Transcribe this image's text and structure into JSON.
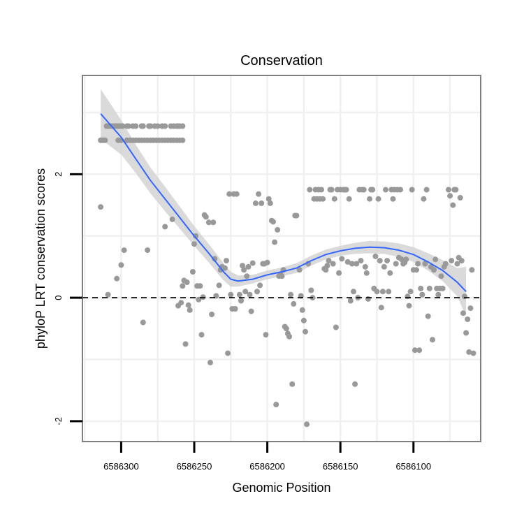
{
  "chart_data": {
    "type": "scatter",
    "title": "Conservation",
    "xlabel": "Genomic Position",
    "ylabel": "phyloP LRT conservation scores",
    "xlim": [
      6586326.5,
      6586054
    ],
    "ylim": [
      -2.33,
      3.6
    ],
    "x_reversed": true,
    "grid": true,
    "xticks": [
      {
        "value": 6586300,
        "label": "6586300"
      },
      {
        "value": 6586250,
        "label": "6586250"
      },
      {
        "value": 6586200,
        "label": "6586200"
      },
      {
        "value": 6586150,
        "label": "6586150"
      },
      {
        "value": 6586100,
        "label": "6586100"
      }
    ],
    "yticks": [
      {
        "value": -2,
        "label": "-2"
      },
      {
        "value": 0,
        "label": "0"
      },
      {
        "value": 2,
        "label": "2"
      }
    ],
    "reference_line": {
      "y": 0,
      "style": "dashed"
    },
    "colors": {
      "points": "#999999",
      "smooth": "#3366FF",
      "band": "#d3d3d3",
      "panel_border": "#7f7f7f",
      "grid": "#f0f0f0"
    },
    "points": [
      [
        6586314,
        2.55
      ],
      [
        6586313,
        2.55
      ],
      [
        6586312,
        2.55
      ],
      [
        6586311,
        2.55
      ],
      [
        6586310,
        2.78
      ],
      [
        6586309,
        2.78
      ],
      [
        6586308,
        2.78
      ],
      [
        6586307,
        2.78
      ],
      [
        6586306,
        2.78
      ],
      [
        6586305,
        2.78
      ],
      [
        6586304,
        2.78
      ],
      [
        6586303,
        2.78
      ],
      [
        6586302,
        2.78
      ],
      [
        6586301,
        2.78
      ],
      [
        6586300,
        2.78
      ],
      [
        6586299,
        2.78
      ],
      [
        6586296,
        2.78
      ],
      [
        6586295,
        2.78
      ],
      [
        6586292,
        2.78
      ],
      [
        6586290,
        2.78
      ],
      [
        6586286,
        2.78
      ],
      [
        6586285,
        2.78
      ],
      [
        6586281,
        2.78
      ],
      [
        6586280,
        2.78
      ],
      [
        6586277,
        2.78
      ],
      [
        6586275,
        2.78
      ],
      [
        6586272,
        2.78
      ],
      [
        6586270,
        2.78
      ],
      [
        6586266,
        2.78
      ],
      [
        6586264,
        2.78
      ],
      [
        6586262,
        2.78
      ],
      [
        6586261,
        2.78
      ],
      [
        6586260,
        2.78
      ],
      [
        6586258,
        2.78
      ],
      [
        6586302,
        2.55
      ],
      [
        6586300,
        2.55
      ],
      [
        6586296,
        2.55
      ],
      [
        6586294,
        2.55
      ],
      [
        6586292,
        2.55
      ],
      [
        6586290,
        2.55
      ],
      [
        6586288,
        2.55
      ],
      [
        6586286,
        2.55
      ],
      [
        6586284,
        2.55
      ],
      [
        6586282,
        2.55
      ],
      [
        6586280,
        2.55
      ],
      [
        6586278,
        2.55
      ],
      [
        6586276,
        2.55
      ],
      [
        6586274,
        2.55
      ],
      [
        6586272,
        2.55
      ],
      [
        6586270,
        2.55
      ],
      [
        6586268,
        2.55
      ],
      [
        6586266,
        2.55
      ],
      [
        6586264,
        2.55
      ],
      [
        6586262,
        2.55
      ],
      [
        6586260,
        2.55
      ],
      [
        6586258,
        2.55
      ],
      [
        6586314,
        1.47
      ],
      [
        6586309,
        0.05
      ],
      [
        6586303,
        0.31
      ],
      [
        6586300,
        0.53
      ],
      [
        6586298,
        0.77
      ],
      [
        6586285,
        -0.4
      ],
      [
        6586282,
        0.77
      ],
      [
        6586270,
        1.15
      ],
      [
        6586265,
        1.27
      ],
      [
        6586261,
        -0.13
      ],
      [
        6586259,
        -0.08
      ],
      [
        6586258,
        0.19
      ],
      [
        6586257,
        0.28
      ],
      [
        6586256,
        -0.75
      ],
      [
        6586255,
        0.25
      ],
      [
        6586254,
        -0.12
      ],
      [
        6586253,
        -0.2
      ],
      [
        6586251,
        0.42
      ],
      [
        6586250,
        0.87
      ],
      [
        6586249,
        1.0
      ],
      [
        6586248,
        0.19
      ],
      [
        6586247,
        -0.03
      ],
      [
        6586246,
        0.19
      ],
      [
        6586245,
        -0.6
      ],
      [
        6586244,
        0.01
      ],
      [
        6586243,
        1.34
      ],
      [
        6586242,
        1.31
      ],
      [
        6586240,
        1.22
      ],
      [
        6586239,
        -1.05
      ],
      [
        6586238,
        -0.27
      ],
      [
        6586237,
        1.22
      ],
      [
        6586236,
        0.63
      ],
      [
        6586235,
        0.03
      ],
      [
        6586233,
        0.2
      ],
      [
        6586232,
        0.45
      ],
      [
        6586231,
        0.5
      ],
      [
        6586230,
        0.48
      ],
      [
        6586229,
        0.48
      ],
      [
        6586228,
        0.6
      ],
      [
        6586227,
        -0.9
      ],
      [
        6586226,
        1.68
      ],
      [
        6586225,
        0.05
      ],
      [
        6586224,
        -0.18
      ],
      [
        6586223,
        1.68
      ],
      [
        6586222,
        -0.18
      ],
      [
        6586221,
        1.68
      ],
      [
        6586219,
        0.05
      ],
      [
        6586218,
        -0.05
      ],
      [
        6586217,
        0.52
      ],
      [
        6586216,
        0.45
      ],
      [
        6586215,
        0.1
      ],
      [
        6586214,
        0.35
      ],
      [
        6586213,
        0.5
      ],
      [
        6586212,
        0.05
      ],
      [
        6586211,
        -0.22
      ],
      [
        6586210,
        0.56
      ],
      [
        6586208,
        1.53
      ],
      [
        6586207,
        0.1
      ],
      [
        6586206,
        1.68
      ],
      [
        6586205,
        0.2
      ],
      [
        6586204,
        1.53
      ],
      [
        6586203,
        0.55
      ],
      [
        6586202,
        0.55
      ],
      [
        6586201,
        -0.6
      ],
      [
        6586200,
        0.57
      ],
      [
        6586199,
        1.6
      ],
      [
        6586198,
        1.53
      ],
      [
        6586197,
        1.25
      ],
      [
        6586196,
        1.23
      ],
      [
        6586195,
        0.9
      ],
      [
        6586194,
        -1.73
      ],
      [
        6586193,
        1.1
      ],
      [
        6586192,
        0.35
      ],
      [
        6586191,
        0.38
      ],
      [
        6586190,
        0.35
      ],
      [
        6586189,
        0.45
      ],
      [
        6586188,
        -0.47
      ],
      [
        6586187,
        -0.5
      ],
      [
        6586186,
        -0.58
      ],
      [
        6586185,
        -0.63
      ],
      [
        6586184,
        0.05
      ],
      [
        6586183,
        -1.4
      ],
      [
        6586182,
        -0.1
      ],
      [
        6586181,
        1.33
      ],
      [
        6586180,
        1.33
      ],
      [
        6586178,
        0.45
      ],
      [
        6586177,
        0.03
      ],
      [
        6586176,
        -0.2
      ],
      [
        6586175,
        -0.37
      ],
      [
        6586174,
        -0.55
      ],
      [
        6586173,
        -2.05
      ],
      [
        6586172,
        0.55
      ],
      [
        6586171,
        1.75
      ],
      [
        6586170,
        0.12
      ],
      [
        6586169,
        0.0
      ],
      [
        6586168,
        1.6
      ],
      [
        6586167,
        1.75
      ],
      [
        6586166,
        1.6
      ],
      [
        6586165,
        1.75
      ],
      [
        6586164,
        1.6
      ],
      [
        6586163,
        1.75
      ],
      [
        6586162,
        1.6
      ],
      [
        6586161,
        0.47
      ],
      [
        6586160,
        0.45
      ],
      [
        6586159,
        0.52
      ],
      [
        6586158,
        0.6
      ],
      [
        6586157,
        1.75
      ],
      [
        6586156,
        1.75
      ],
      [
        6586155,
        0.55
      ],
      [
        6586154,
        1.6
      ],
      [
        6586153,
        -0.48
      ],
      [
        6586152,
        1.75
      ],
      [
        6586151,
        0.4
      ],
      [
        6586150,
        1.75
      ],
      [
        6586149,
        0.63
      ],
      [
        6586148,
        1.75
      ],
      [
        6586147,
        1.75
      ],
      [
        6586146,
        1.75
      ],
      [
        6586145,
        0.58
      ],
      [
        6586144,
        1.6
      ],
      [
        6586143,
        -0.05
      ],
      [
        6586142,
        0.55
      ],
      [
        6586141,
        0.1
      ],
      [
        6586140,
        -1.4
      ],
      [
        6586139,
        0.55
      ],
      [
        6586138,
        0.0
      ],
      [
        6586137,
        1.75
      ],
      [
        6586136,
        0.6
      ],
      [
        6586135,
        1.75
      ],
      [
        6586134,
        1.75
      ],
      [
        6586133,
        0.5
      ],
      [
        6586132,
        0.4
      ],
      [
        6586131,
        -0.02
      ],
      [
        6586130,
        1.6
      ],
      [
        6586129,
        1.75
      ],
      [
        6586128,
        1.75
      ],
      [
        6586127,
        0.15
      ],
      [
        6586126,
        0.67
      ],
      [
        6586125,
        0.1
      ],
      [
        6586124,
        1.6
      ],
      [
        6586123,
        0.6
      ],
      [
        6586122,
        -0.16
      ],
      [
        6586121,
        0.1
      ],
      [
        6586120,
        0.5
      ],
      [
        6586119,
        1.75
      ],
      [
        6586118,
        0.6
      ],
      [
        6586117,
        0.1
      ],
      [
        6586116,
        0.4
      ],
      [
        6586115,
        1.75
      ],
      [
        6586114,
        1.6
      ],
      [
        6586113,
        1.75
      ],
      [
        6586112,
        0.55
      ],
      [
        6586111,
        1.75
      ],
      [
        6586110,
        0.65
      ],
      [
        6586109,
        1.75
      ],
      [
        6586108,
        0.62
      ],
      [
        6586107,
        0.55
      ],
      [
        6586106,
        0.57
      ],
      [
        6586105,
        0.62
      ],
      [
        6586104,
        0.02
      ],
      [
        6586103,
        -0.13
      ],
      [
        6586102,
        0.1
      ],
      [
        6586101,
        1.75
      ],
      [
        6586100,
        0.45
      ],
      [
        6586099,
        -0.85
      ],
      [
        6586098,
        0.45
      ],
      [
        6586097,
        0.55
      ],
      [
        6586096,
        -0.85
      ],
      [
        6586095,
        0.15
      ],
      [
        6586094,
        0.05
      ],
      [
        6586093,
        1.6
      ],
      [
        6586092,
        0.55
      ],
      [
        6586091,
        1.75
      ],
      [
        6586090,
        -0.3
      ],
      [
        6586089,
        0.15
      ],
      [
        6586088,
        0.5
      ],
      [
        6586087,
        -0.68
      ],
      [
        6586086,
        0.45
      ],
      [
        6586085,
        0.62
      ],
      [
        6586084,
        0.15
      ],
      [
        6586083,
        0.05
      ],
      [
        6586082,
        0.15
      ],
      [
        6586081,
        0.35
      ],
      [
        6586080,
        0.15
      ],
      [
        6586079,
        0.5
      ],
      [
        6586078,
        0.55
      ],
      [
        6586076,
        1.75
      ],
      [
        6586075,
        1.65
      ],
      [
        6586074,
        0.6
      ],
      [
        6586073,
        1.5
      ],
      [
        6586072,
        1.75
      ],
      [
        6586071,
        1.75
      ],
      [
        6586070,
        0.55
      ],
      [
        6586069,
        0.65
      ],
      [
        6586068,
        1.62
      ],
      [
        6586067,
        0.6
      ],
      [
        6586066,
        -0.25
      ],
      [
        6586065,
        0.02
      ],
      [
        6586064,
        -0.57
      ],
      [
        6586063,
        -0.35
      ],
      [
        6586062,
        -0.88
      ],
      [
        6586061,
        -0.17
      ],
      [
        6586060,
        0.45
      ],
      [
        6586059,
        -0.9
      ]
    ],
    "smooth": {
      "x": [
        6586314,
        6586300,
        6586290,
        6586280,
        6586270,
        6586260,
        6586250,
        6586240,
        6586230,
        6586225,
        6586220,
        6586210,
        6586200,
        6586190,
        6586180,
        6586170,
        6586160,
        6586150,
        6586140,
        6586130,
        6586120,
        6586110,
        6586100,
        6586090,
        6586080,
        6586070,
        6586064
      ],
      "y": [
        2.98,
        2.6,
        2.25,
        1.9,
        1.6,
        1.3,
        1.0,
        0.72,
        0.42,
        0.3,
        0.27,
        0.3,
        0.37,
        0.42,
        0.48,
        0.6,
        0.7,
        0.76,
        0.8,
        0.82,
        0.81,
        0.77,
        0.7,
        0.58,
        0.44,
        0.25,
        0.1
      ],
      "lower": [
        2.57,
        2.32,
        2.02,
        1.69,
        1.4,
        1.12,
        0.84,
        0.57,
        0.28,
        0.18,
        0.18,
        0.23,
        0.3,
        0.35,
        0.4,
        0.52,
        0.62,
        0.68,
        0.71,
        0.72,
        0.71,
        0.66,
        0.58,
        0.44,
        0.27,
        0.02,
        -0.3
      ],
      "upper": [
        3.38,
        2.88,
        2.48,
        2.11,
        1.8,
        1.48,
        1.16,
        0.87,
        0.56,
        0.42,
        0.36,
        0.37,
        0.44,
        0.49,
        0.56,
        0.68,
        0.78,
        0.84,
        0.89,
        0.92,
        0.91,
        0.88,
        0.82,
        0.72,
        0.61,
        0.48,
        0.5
      ]
    }
  }
}
